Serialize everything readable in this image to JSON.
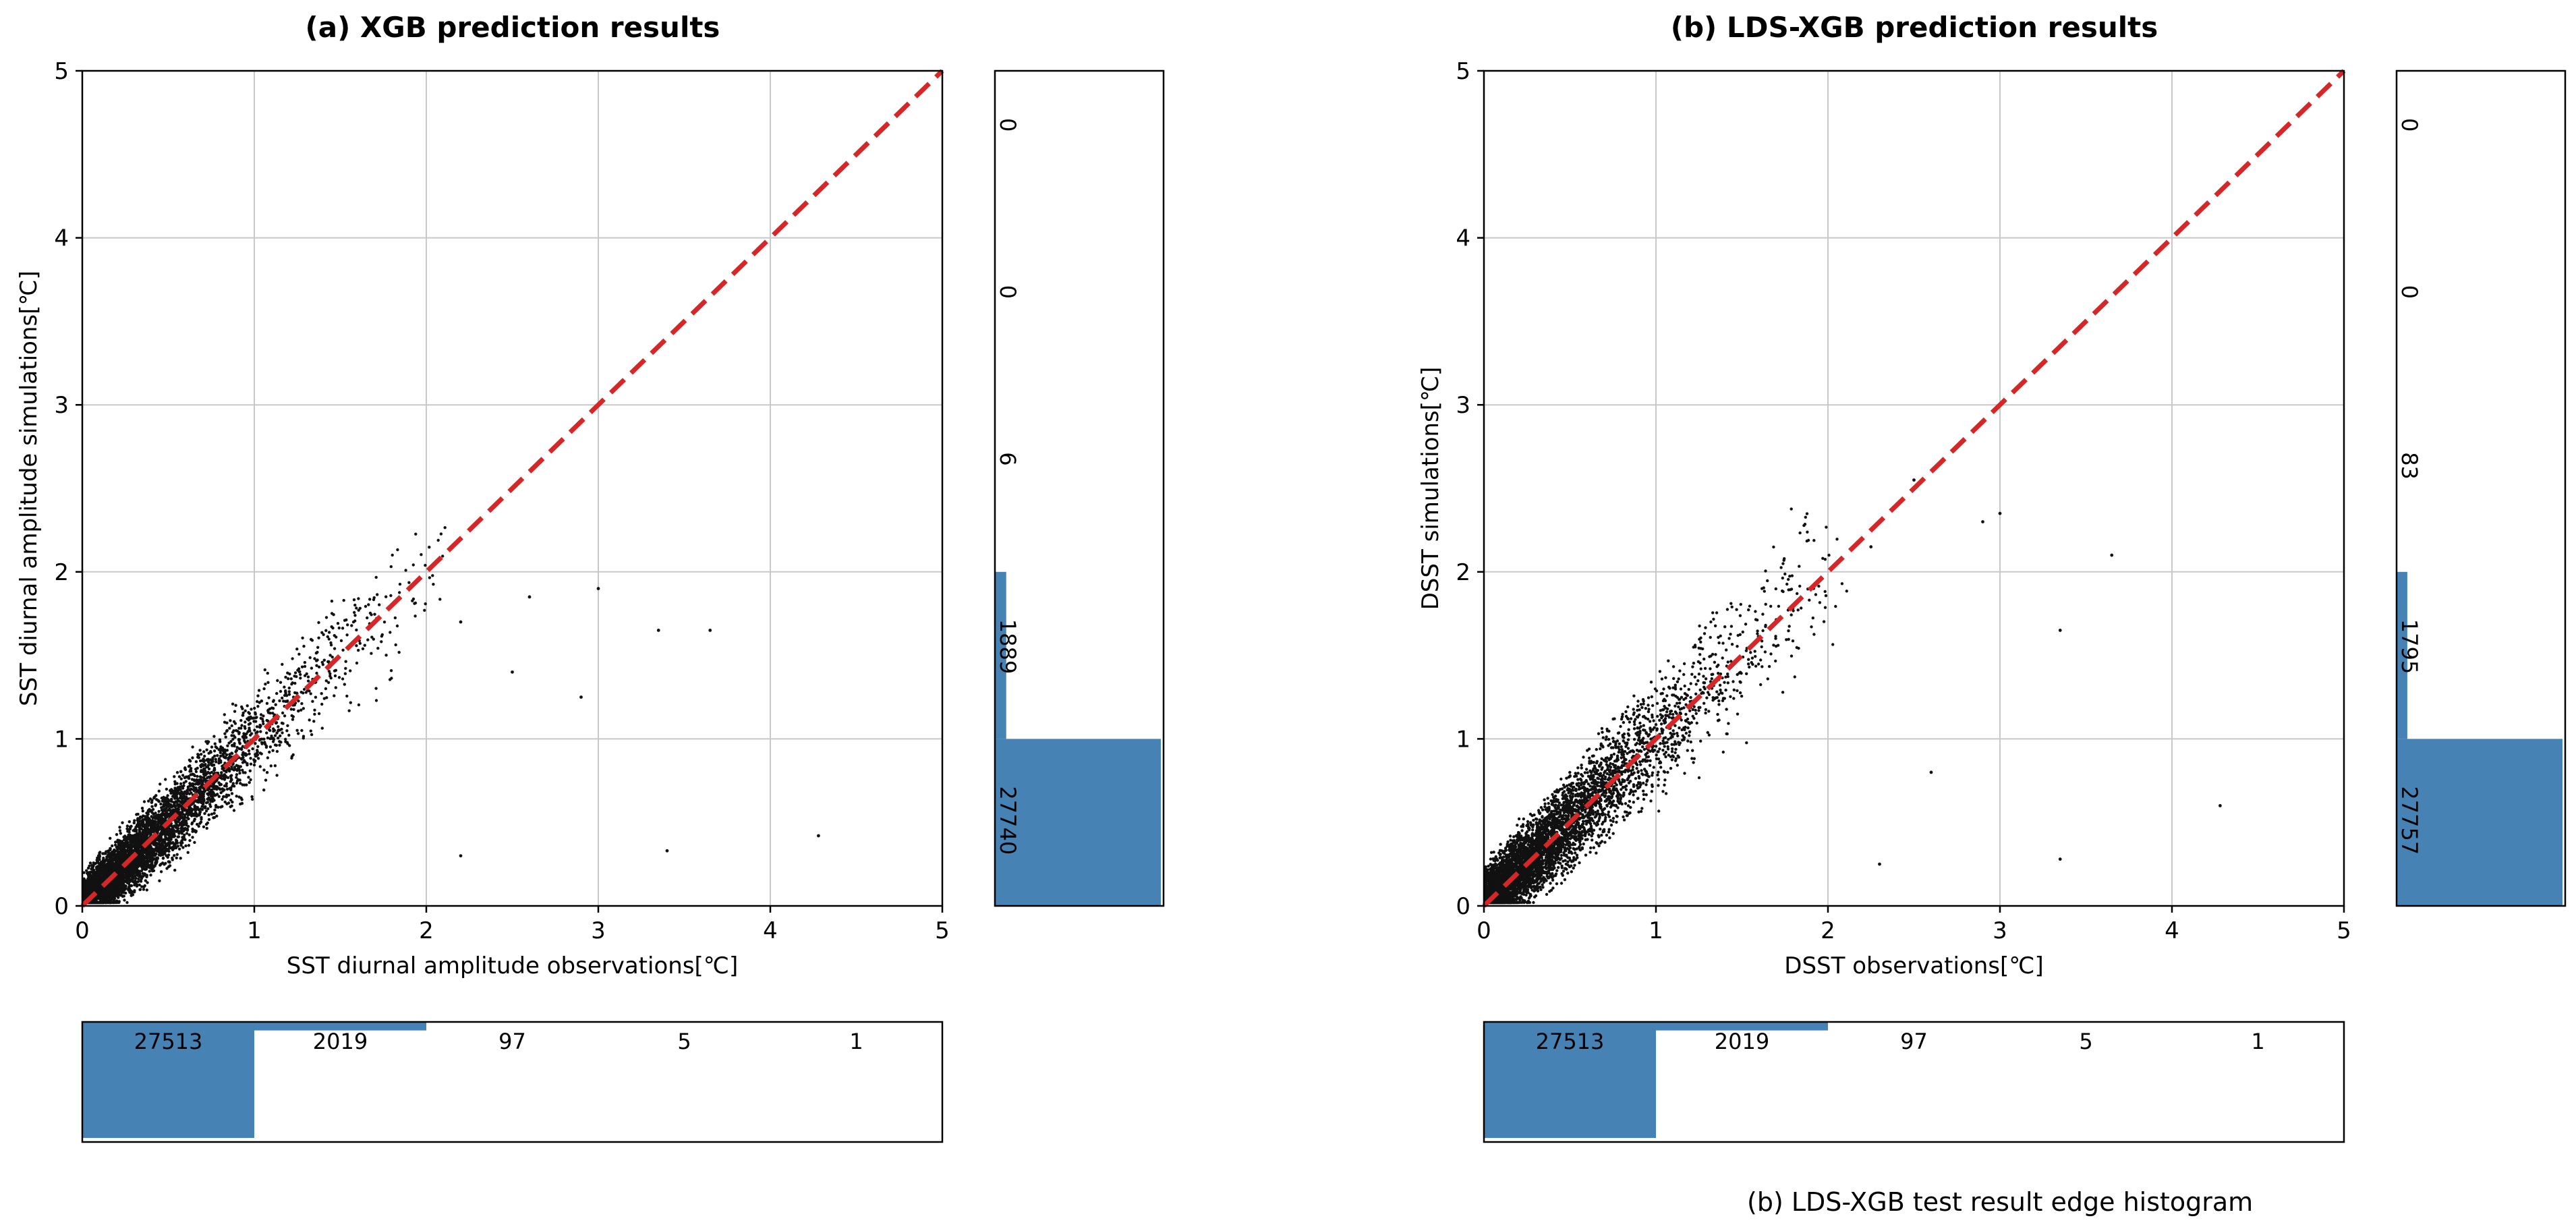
{
  "colors": {
    "bar": "#4682b4",
    "diag": "#d62728",
    "grid": "#c8c8c8",
    "point": "#111111"
  },
  "caption_b": "(b) LDS-XGB test result edge histogram",
  "chart_data": [
    {
      "type": "scatter",
      "title": "(a) XGB prediction results",
      "xlabel": "SST diurnal amplitude observations[℃]",
      "ylabel": "SST diurnal amplitude simulations[℃]",
      "xlim": [
        0,
        5
      ],
      "ylim": [
        0,
        5
      ],
      "xticks": [
        "0",
        "1",
        "2",
        "3",
        "4",
        "5"
      ],
      "yticks": [
        "0",
        "1",
        "2",
        "3",
        "4",
        "5"
      ],
      "grid": true,
      "reference_line": "y = x",
      "cloud": {
        "n_points": 5200,
        "spread": 0.25,
        "seed": 7
      },
      "outliers": [
        [
          2.2,
          1.7
        ],
        [
          2.6,
          1.85
        ],
        [
          3.0,
          1.9
        ],
        [
          3.35,
          1.65
        ],
        [
          3.65,
          1.65
        ],
        [
          4.28,
          0.42
        ],
        [
          3.4,
          0.33
        ],
        [
          2.9,
          1.25
        ],
        [
          2.5,
          1.4
        ],
        [
          2.2,
          0.3
        ]
      ],
      "top_hist": {
        "bins": [
          "0-1",
          "1-2",
          "2-3",
          "3-4",
          "4-5"
        ],
        "counts": [
          27513,
          2019,
          97,
          5,
          1
        ]
      },
      "right_hist": {
        "bins": [
          "0-1",
          "1-2",
          "2-3",
          "3-4",
          "4-5"
        ],
        "counts": [
          27740,
          1889,
          6,
          0,
          0
        ]
      }
    },
    {
      "type": "scatter",
      "title": "(b) LDS-XGB prediction results",
      "xlabel": "DSST observations[℃]",
      "ylabel": "DSST simulations[℃]",
      "xlim": [
        0,
        5
      ],
      "ylim": [
        0,
        5
      ],
      "xticks": [
        "0",
        "1",
        "2",
        "3",
        "4",
        "5"
      ],
      "yticks": [
        "0",
        "1",
        "2",
        "3",
        "4",
        "5"
      ],
      "grid": true,
      "reference_line": "y = x",
      "cloud": {
        "n_points": 5200,
        "spread": 0.3,
        "seed": 13
      },
      "outliers": [
        [
          2.5,
          2.55
        ],
        [
          2.9,
          2.3
        ],
        [
          3.0,
          2.35
        ],
        [
          3.35,
          1.65
        ],
        [
          3.65,
          2.1
        ],
        [
          4.28,
          0.6
        ],
        [
          3.35,
          0.28
        ],
        [
          2.6,
          0.8
        ],
        [
          2.25,
          2.15
        ],
        [
          2.3,
          0.25
        ]
      ],
      "top_hist": {
        "bins": [
          "0-1",
          "1-2",
          "2-3",
          "3-4",
          "4-5"
        ],
        "counts": [
          27513,
          2019,
          97,
          5,
          1
        ]
      },
      "right_hist": {
        "bins": [
          "0-1",
          "1-2",
          "2-3",
          "3-4",
          "4-5"
        ],
        "counts": [
          27757,
          1795,
          83,
          0,
          0
        ]
      }
    }
  ]
}
